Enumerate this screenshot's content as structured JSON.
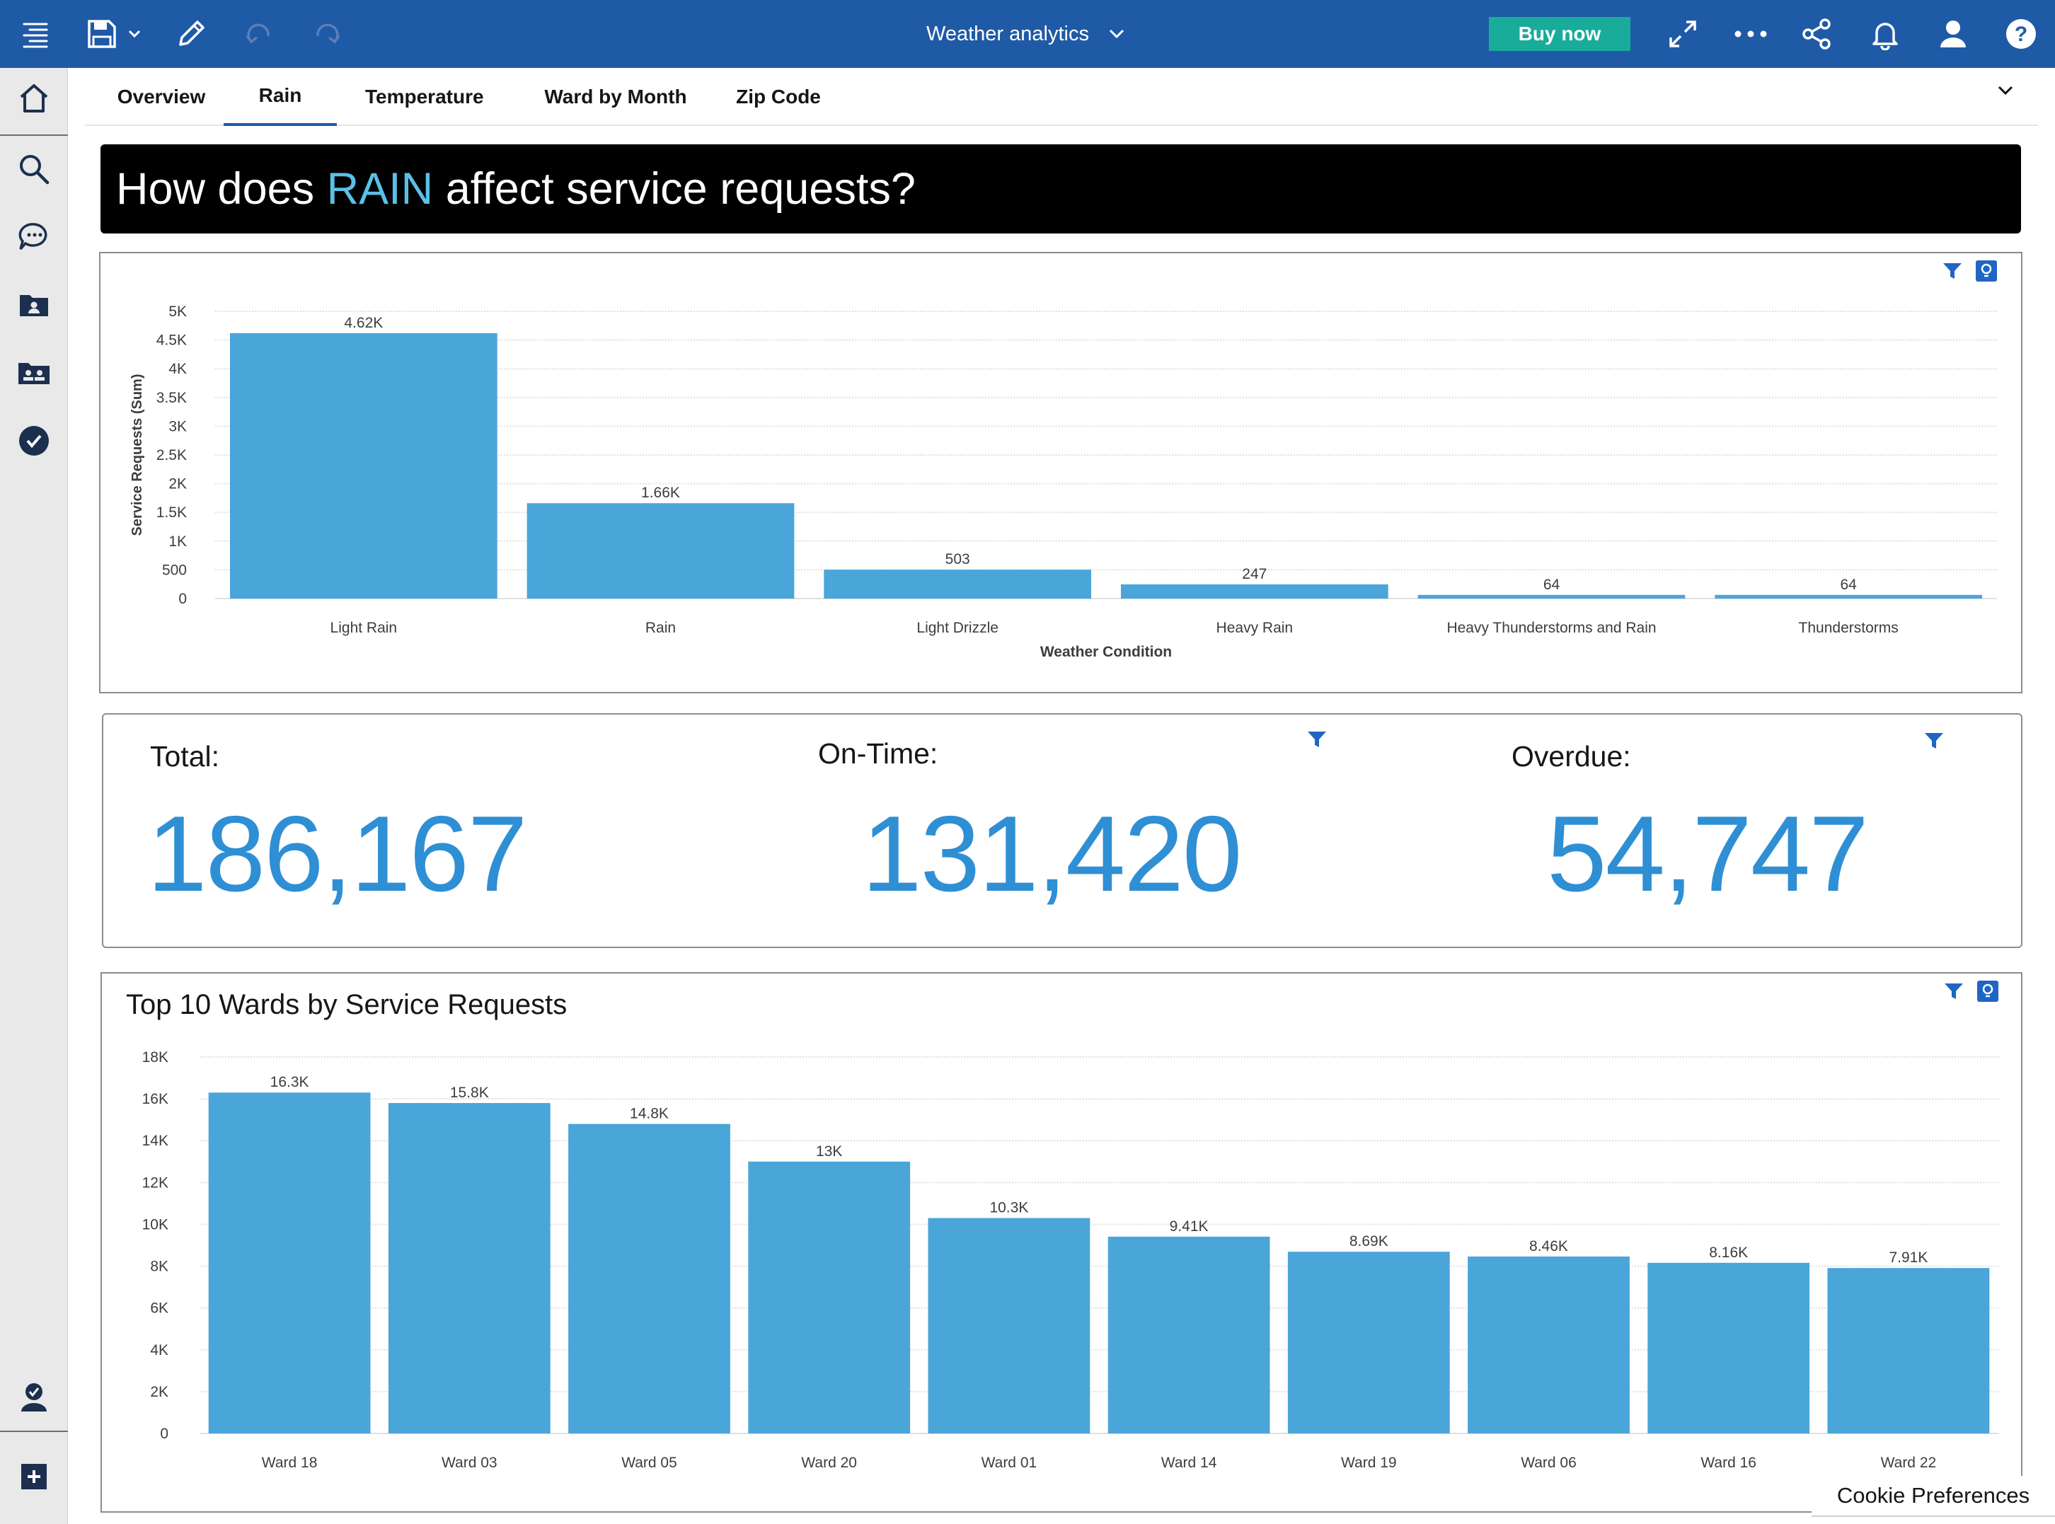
{
  "app": {
    "title": "Weather analytics",
    "buy_label": "Buy now"
  },
  "tabs": [
    {
      "label": "Overview",
      "active": false
    },
    {
      "label": "Rain",
      "active": true
    },
    {
      "label": "Temperature",
      "active": false
    },
    {
      "label": "Ward by Month",
      "active": false
    },
    {
      "label": "Zip Code",
      "active": false
    }
  ],
  "banner": {
    "prefix": "How does ",
    "highlight": "RAIN",
    "suffix": " affect service requests?"
  },
  "kpis": {
    "total": {
      "label": "Total:",
      "value": "186,167"
    },
    "on_time": {
      "label": "On-Time:",
      "value": "131,420"
    },
    "overdue": {
      "label": "Overdue:",
      "value": "54,747"
    }
  },
  "wards_title": "Top 10 Wards by Service Requests",
  "cookie_label": "Cookie Preferences",
  "colors": {
    "brand": "#1f5aa6",
    "accent": "#19ac9b",
    "bar": "#4aa5d9",
    "kpi": "#2f8fd4",
    "highlight": "#5bc0e6"
  },
  "icons": {
    "topbar": [
      "menu-icon",
      "save-icon",
      "chevron-down-icon",
      "pencil-icon",
      "undo-icon",
      "redo-icon",
      "expand-icon",
      "more-icon",
      "share-icon",
      "bell-icon",
      "user-icon",
      "help-icon"
    ],
    "leftrail": [
      "home-icon",
      "search-icon",
      "chat-icon",
      "folder-user-icon",
      "people-icon",
      "check-circle-icon",
      "user-check-icon",
      "add-icon"
    ],
    "panel_tools": [
      "filter-icon",
      "insight-icon"
    ]
  },
  "chart_data": [
    {
      "type": "bar",
      "categories": [
        "Light Rain",
        "Rain",
        "Light Drizzle",
        "Heavy Rain",
        "Heavy Thunderstorms and Rain",
        "Thunderstorms"
      ],
      "values": [
        4620,
        1660,
        503,
        247,
        64,
        64
      ],
      "value_labels": [
        "4.62K",
        "1.66K",
        "503",
        "247",
        "64",
        "64"
      ],
      "xlabel": "Weather Condition",
      "ylabel": "Service Requests (Sum)",
      "ylim": [
        0,
        5000
      ],
      "yticks": [
        0,
        500,
        1000,
        1500,
        2000,
        2500,
        3000,
        3500,
        4000,
        4500,
        5000
      ],
      "ytick_labels": [
        "0",
        "500",
        "1K",
        "1.5K",
        "2K",
        "2.5K",
        "3K",
        "3.5K",
        "4K",
        "4.5K",
        "5K"
      ],
      "grid": true
    },
    {
      "type": "bar",
      "title": "Top 10 Wards by Service Requests",
      "categories": [
        "Ward 18",
        "Ward 03",
        "Ward 05",
        "Ward 20",
        "Ward 01",
        "Ward 14",
        "Ward 19",
        "Ward 06",
        "Ward 16",
        "Ward 22"
      ],
      "values": [
        16300,
        15800,
        14800,
        13000,
        10300,
        9410,
        8690,
        8460,
        8160,
        7910
      ],
      "value_labels": [
        "16.3K",
        "15.8K",
        "14.8K",
        "13K",
        "10.3K",
        "9.41K",
        "8.69K",
        "8.46K",
        "8.16K",
        "7.91K"
      ],
      "ylim": [
        0,
        18000
      ],
      "yticks": [
        0,
        2000,
        4000,
        6000,
        8000,
        10000,
        12000,
        14000,
        16000,
        18000
      ],
      "ytick_labels": [
        "0",
        "2K",
        "4K",
        "6K",
        "8K",
        "10K",
        "12K",
        "14K",
        "16K",
        "18K"
      ],
      "grid": true
    }
  ]
}
